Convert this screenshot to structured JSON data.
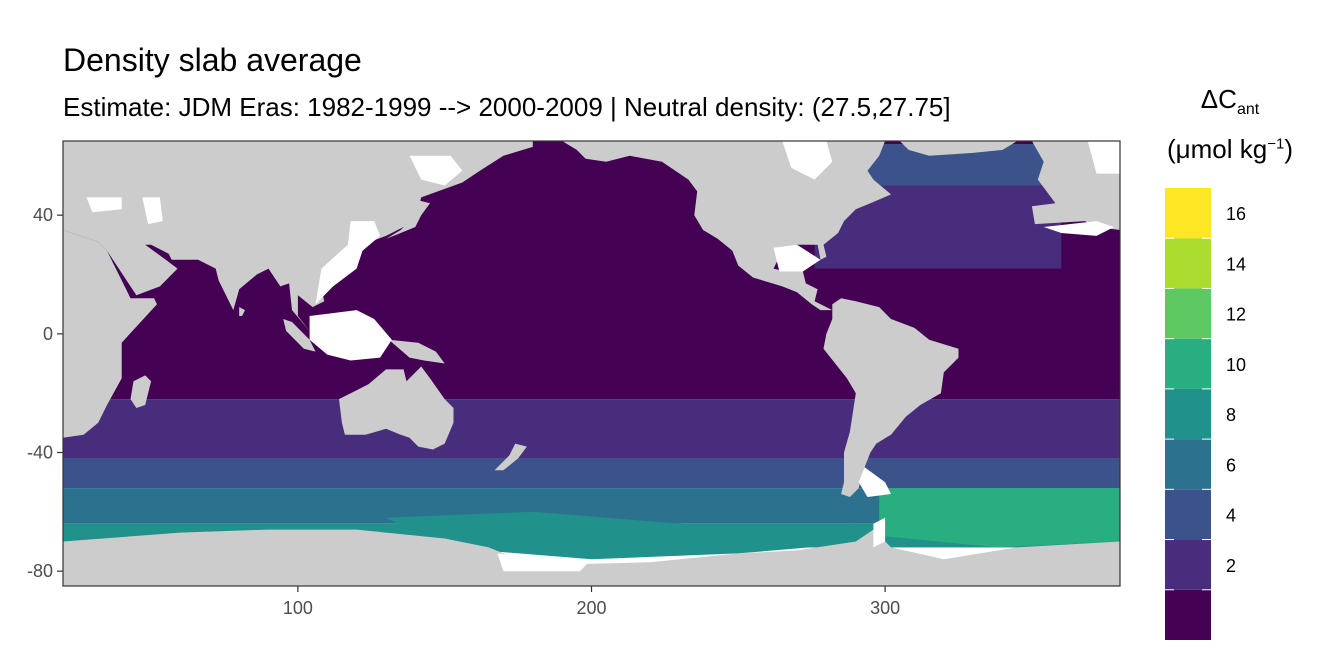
{
  "chart_data": {
    "type": "heatmap",
    "title": "Density slab average",
    "subtitle": "Estimate: JDM Eras: 1982-1999 --> 2000-2009 | Neutral density: (27.5,27.75]",
    "xlabel": "",
    "ylabel": "",
    "xlim": [
      20,
      380
    ],
    "ylim": [
      -85,
      65
    ],
    "x_ticks": [
      100,
      200,
      300
    ],
    "y_ticks": [
      40,
      0,
      -40,
      -80
    ],
    "grid": false,
    "background_colors": {
      "land": "#cccccc",
      "no_data": "#ffffff"
    },
    "legend": {
      "title": "ΔC",
      "title_subscript": "ant",
      "unit_prefix": "(μmol kg",
      "unit_superscript": "−1",
      "unit_suffix": ")",
      "placement": "right",
      "breaks": [
        0,
        2,
        4,
        6,
        8,
        10,
        12,
        14,
        16,
        18
      ],
      "labels": [
        "2",
        "4",
        "6",
        "8",
        "10",
        "12",
        "14",
        "16"
      ],
      "colors": [
        "#440154",
        "#472d7b",
        "#3b528b",
        "#2c728e",
        "#21918c",
        "#28ae80",
        "#5ec962",
        "#addc30",
        "#fde725"
      ]
    },
    "zonal_bands": [
      {
        "lat_max": 65,
        "lat_min": -22,
        "bin": 0
      },
      {
        "lat_max": -22,
        "lat_min": -42,
        "bin": 1
      },
      {
        "lat_max": -42,
        "lat_min": -52,
        "bin": 2
      },
      {
        "lat_max": -52,
        "lat_min": -64,
        "bin": 3
      },
      {
        "lat_max": -64,
        "lat_min": -72,
        "bin": 4
      }
    ],
    "north_atlantic_bands": [
      {
        "lat_max": 64,
        "lat_min": 50,
        "bin": 2
      },
      {
        "lat_max": 50,
        "lat_min": 22,
        "bin": 1
      }
    ],
    "south_atlantic_maximum": {
      "lon_min": 298,
      "lon_max": 380,
      "lat_max": -52,
      "lat_min": -70,
      "bin": 5
    }
  }
}
